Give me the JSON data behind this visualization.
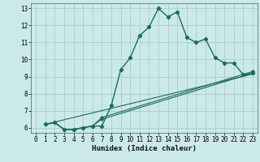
{
  "title": "",
  "xlabel": "Humidex (Indice chaleur)",
  "bg_color": "#cce9e9",
  "grid_color": "#aacccc",
  "line_color": "#1a6b5a",
  "xlim": [
    -0.5,
    23.5
  ],
  "ylim": [
    5.7,
    13.3
  ],
  "yticks": [
    6,
    7,
    8,
    9,
    10,
    11,
    12,
    13
  ],
  "xticks": [
    0,
    1,
    2,
    3,
    4,
    5,
    6,
    7,
    8,
    9,
    10,
    11,
    12,
    13,
    14,
    15,
    16,
    17,
    18,
    19,
    20,
    21,
    22,
    23
  ],
  "line1_x": [
    1,
    2,
    3,
    4,
    5,
    6,
    7,
    8,
    9,
    10,
    11,
    12,
    13,
    14,
    15,
    16,
    17,
    18,
    19,
    20,
    21,
    22,
    23
  ],
  "line1_y": [
    6.2,
    6.3,
    5.9,
    5.9,
    6.0,
    6.1,
    6.1,
    7.3,
    9.4,
    10.1,
    11.4,
    11.9,
    13.0,
    12.5,
    12.8,
    11.3,
    11.0,
    11.2,
    10.1,
    9.8,
    9.8,
    9.1,
    9.2
  ],
  "line2_x": [
    1,
    2,
    3,
    4,
    5,
    6,
    7,
    23
  ],
  "line2_y": [
    6.2,
    6.3,
    5.9,
    5.9,
    6.0,
    6.1,
    6.5,
    9.2
  ],
  "line3_x": [
    1,
    2,
    3,
    4,
    5,
    6,
    7,
    23
  ],
  "line3_y": [
    6.2,
    6.3,
    5.9,
    5.9,
    6.0,
    6.1,
    6.6,
    9.3
  ],
  "line4_x": [
    1,
    23
  ],
  "line4_y": [
    6.2,
    9.15
  ]
}
